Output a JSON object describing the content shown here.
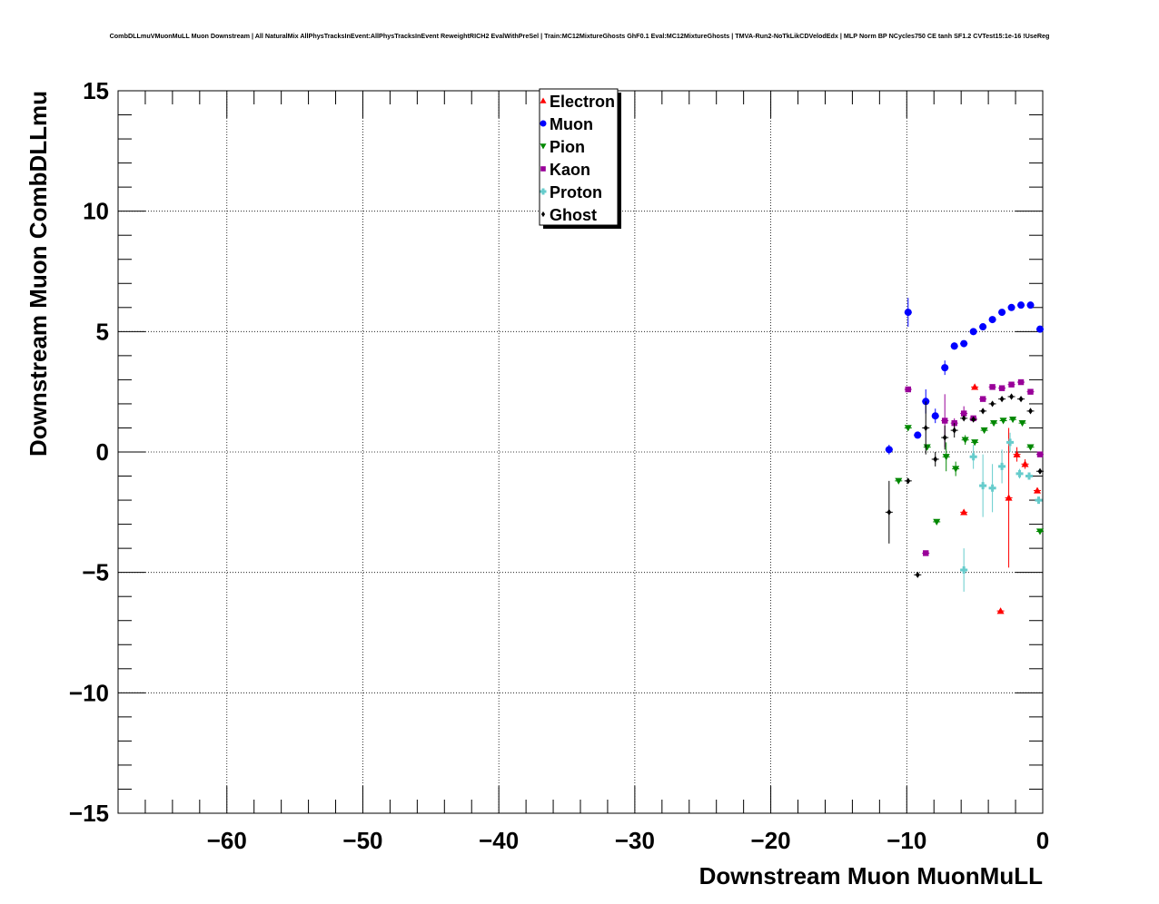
{
  "chart_data": {
    "type": "scatter",
    "title": "CombDLLmuVMuonMuLL Muon Downstream | All NaturalMix AllPhysTracksInEvent:AllPhysTracksInEvent ReweightRICH2 EvalWithPreSel | Train:MC12MixtureGhosts GhF0.1 Eval:MC12MixtureGhosts | TMVA-Run2-NoTkLikCDVelodEdx | MLP Norm BP NCycles750 CE tanh SF1.2 CVTest15:1e-16 !UseReg",
    "xlabel": "Downstream Muon MuonMuLL",
    "ylabel": "Downstream Muon CombDLLmu",
    "xlim": [
      -68,
      0
    ],
    "ylim": [
      -15,
      15
    ],
    "xticks": [
      -60,
      -50,
      -40,
      -30,
      -20,
      -10,
      0
    ],
    "yticks": [
      -15,
      -10,
      -5,
      0,
      5,
      10,
      15
    ],
    "xtick_labels": [
      "−60",
      "−50",
      "−40",
      "−30",
      "−20",
      "−10",
      "0"
    ],
    "ytick_labels": [
      "−15",
      "−10",
      "−5",
      "0",
      "5",
      "10",
      "15"
    ],
    "grid": true,
    "legend_position": "top-center",
    "series": [
      {
        "name": "Electron",
        "marker": "triangle-up",
        "color": "#ff0000",
        "points": [
          {
            "x": -5.0,
            "y": 2.7,
            "ey": 0.1
          },
          {
            "x": -5.8,
            "y": -2.5,
            "ey": 0.1
          },
          {
            "x": -3.1,
            "y": -6.6,
            "ey": 0.1
          },
          {
            "x": -2.5,
            "y": -1.9,
            "ey": 2.9
          },
          {
            "x": -1.9,
            "y": -0.1,
            "ey": 0.3
          },
          {
            "x": -1.3,
            "y": -0.5,
            "ey": 0.2
          },
          {
            "x": -0.4,
            "y": -1.6,
            "ey": 0.1
          }
        ]
      },
      {
        "name": "Muon",
        "marker": "circle",
        "color": "#0000ff",
        "points": [
          {
            "x": -11.3,
            "y": 0.1,
            "ey": 0.2
          },
          {
            "x": -9.9,
            "y": 5.8,
            "ey": 0.6
          },
          {
            "x": -9.2,
            "y": 0.7,
            "ey": 0.1
          },
          {
            "x": -8.6,
            "y": 2.1,
            "ey": 0.5
          },
          {
            "x": -7.9,
            "y": 1.5,
            "ey": 0.3
          },
          {
            "x": -7.2,
            "y": 3.5,
            "ey": 0.3
          },
          {
            "x": -6.5,
            "y": 4.4,
            "ey": 0.15
          },
          {
            "x": -5.8,
            "y": 4.5,
            "ey": 0.1
          },
          {
            "x": -5.1,
            "y": 5.0,
            "ey": 0.05
          },
          {
            "x": -4.4,
            "y": 5.2,
            "ey": 0.05
          },
          {
            "x": -3.7,
            "y": 5.5,
            "ey": 0.05
          },
          {
            "x": -3.0,
            "y": 5.8,
            "ey": 0.05
          },
          {
            "x": -2.3,
            "y": 6.0,
            "ey": 0.05
          },
          {
            "x": -1.6,
            "y": 6.1,
            "ey": 0.05
          },
          {
            "x": -0.9,
            "y": 6.1,
            "ey": 0.05
          },
          {
            "x": -0.2,
            "y": 5.1,
            "ey": 0.05
          }
        ]
      },
      {
        "name": "Pion",
        "marker": "triangle-down",
        "color": "#008800",
        "points": [
          {
            "x": -10.6,
            "y": -1.2,
            "ey": 0.1
          },
          {
            "x": -9.9,
            "y": 1.0,
            "ey": 0.1
          },
          {
            "x": -8.5,
            "y": 0.2,
            "ey": 0.1
          },
          {
            "x": -7.8,
            "y": -2.9,
            "ey": 0.1
          },
          {
            "x": -7.1,
            "y": -0.2,
            "ey": 0.6
          },
          {
            "x": -6.4,
            "y": -0.7,
            "ey": 0.3
          },
          {
            "x": -5.7,
            "y": 0.5,
            "ey": 0.2
          },
          {
            "x": -5.0,
            "y": 0.4,
            "ey": 0.1
          },
          {
            "x": -4.3,
            "y": 0.9,
            "ey": 0.1
          },
          {
            "x": -3.6,
            "y": 1.2,
            "ey": 0.1
          },
          {
            "x": -2.9,
            "y": 1.3,
            "ey": 0.05
          },
          {
            "x": -2.2,
            "y": 1.35,
            "ey": 0.05
          },
          {
            "x": -1.5,
            "y": 1.2,
            "ey": 0.05
          },
          {
            "x": -0.9,
            "y": 0.2,
            "ey": 0.05
          },
          {
            "x": -0.2,
            "y": -3.3,
            "ey": 0.05
          }
        ]
      },
      {
        "name": "Kaon",
        "marker": "square",
        "color": "#990099",
        "points": [
          {
            "x": -9.9,
            "y": 2.6,
            "ey": 0.1
          },
          {
            "x": -8.6,
            "y": -4.2,
            "ey": 0.1
          },
          {
            "x": -7.2,
            "y": 1.3,
            "ey": 1.1
          },
          {
            "x": -6.5,
            "y": 1.2,
            "ey": 0.2
          },
          {
            "x": -5.8,
            "y": 1.6,
            "ey": 0.3
          },
          {
            "x": -5.1,
            "y": 1.4,
            "ey": 0.1
          },
          {
            "x": -4.4,
            "y": 2.2,
            "ey": 0.1
          },
          {
            "x": -3.7,
            "y": 2.7,
            "ey": 0.1
          },
          {
            "x": -3.0,
            "y": 2.65,
            "ey": 0.05
          },
          {
            "x": -2.3,
            "y": 2.8,
            "ey": 0.05
          },
          {
            "x": -1.6,
            "y": 2.9,
            "ey": 0.05
          },
          {
            "x": -0.9,
            "y": 2.5,
            "ey": 0.05
          },
          {
            "x": -0.2,
            "y": -0.1,
            "ey": 0.05
          }
        ]
      },
      {
        "name": "Proton",
        "marker": "cross",
        "color": "#66cccc",
        "points": [
          {
            "x": -5.8,
            "y": -4.9,
            "ey": 0.9
          },
          {
            "x": -5.1,
            "y": -0.2,
            "ey": 0.5
          },
          {
            "x": -4.4,
            "y": -1.4,
            "ey": 1.3
          },
          {
            "x": -3.7,
            "y": -1.5,
            "ey": 1.0
          },
          {
            "x": -3.0,
            "y": -0.6,
            "ey": 0.7
          },
          {
            "x": -2.4,
            "y": 0.4,
            "ey": 0.4
          },
          {
            "x": -1.7,
            "y": -0.9,
            "ey": 0.2
          },
          {
            "x": -1.0,
            "y": -1.0,
            "ey": 0.1
          },
          {
            "x": -0.3,
            "y": -2.0,
            "ey": 0.1
          }
        ]
      },
      {
        "name": "Ghost",
        "marker": "diamond",
        "color": "#000000",
        "points": [
          {
            "x": -11.3,
            "y": -2.5,
            "ey": 1.3
          },
          {
            "x": -9.9,
            "y": -1.2,
            "ey": 0.1
          },
          {
            "x": -9.2,
            "y": -5.1,
            "ey": 0.1
          },
          {
            "x": -8.6,
            "y": 1.0,
            "ey": 1.1
          },
          {
            "x": -7.9,
            "y": -0.3,
            "ey": 0.3
          },
          {
            "x": -7.2,
            "y": 0.6,
            "ey": 0.5
          },
          {
            "x": -6.5,
            "y": 0.9,
            "ey": 0.3
          },
          {
            "x": -5.8,
            "y": 1.4,
            "ey": 0.1
          },
          {
            "x": -5.1,
            "y": 1.35,
            "ey": 0.05
          },
          {
            "x": -4.4,
            "y": 1.7,
            "ey": 0.05
          },
          {
            "x": -3.7,
            "y": 2.0,
            "ey": 0.05
          },
          {
            "x": -3.0,
            "y": 2.2,
            "ey": 0.05
          },
          {
            "x": -2.3,
            "y": 2.3,
            "ey": 0.05
          },
          {
            "x": -1.6,
            "y": 2.2,
            "ey": 0.05
          },
          {
            "x": -0.9,
            "y": 1.7,
            "ey": 0.05
          },
          {
            "x": -0.2,
            "y": -0.8,
            "ey": 0.05
          }
        ]
      }
    ]
  }
}
